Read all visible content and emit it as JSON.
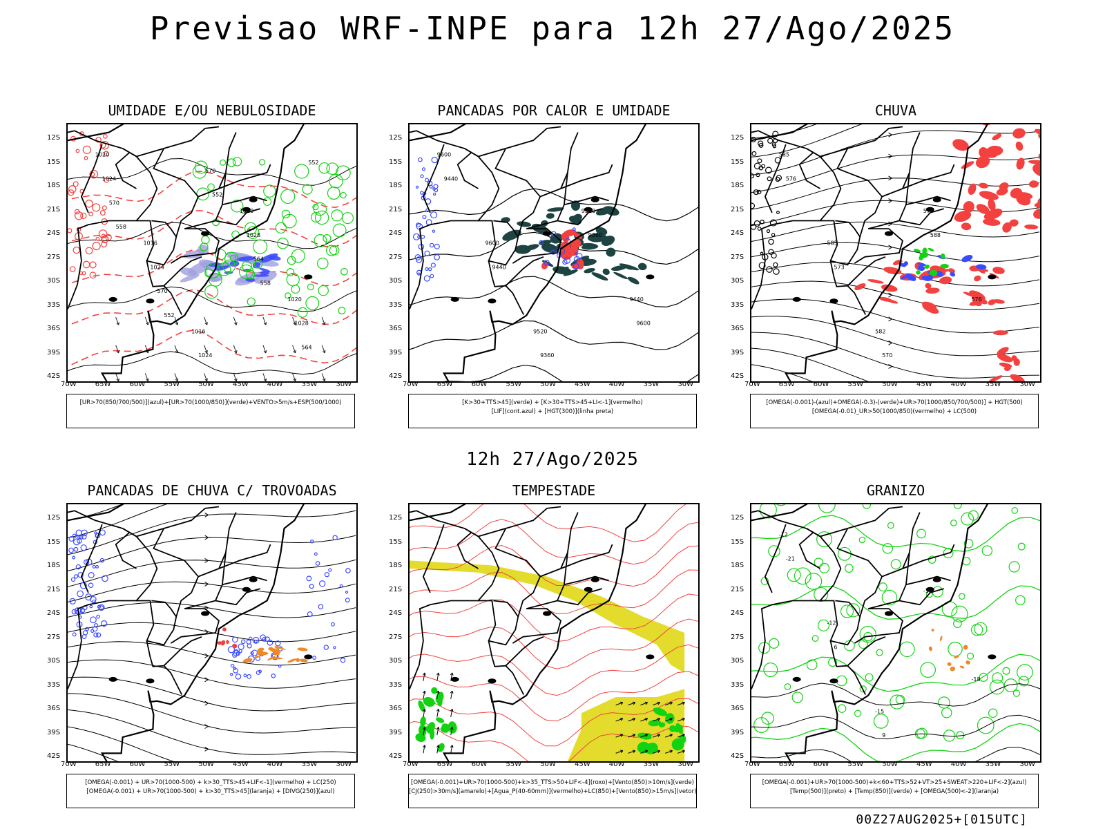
{
  "title": "Previsao WRF-INPE  para 12h 27/Ago/2025",
  "mid_date": "12h 27/Ago/2025",
  "footer": "00Z27AUG2025+[015UTC]",
  "lat_ticks": [
    "12S",
    "15S",
    "18S",
    "21S",
    "24S",
    "27S",
    "30S",
    "33S",
    "36S",
    "39S",
    "42S"
  ],
  "lon_ticks": [
    "70W",
    "65W",
    "60W",
    "55W",
    "50W",
    "45W",
    "40W",
    "35W",
    "30W"
  ],
  "panels": [
    {
      "id": "umidade",
      "title": "UMIDADE E/OU NEBULOSIDADE",
      "legend": [
        "[UR>70(850/700/500)](azul)+[UR>70(1000/850)](verde)+VENTO>5m/s+ESP(500/1000)"
      ],
      "contour_labels": [
        "1020",
        "1016",
        "1016",
        "1020",
        "1020",
        "1024",
        "1024",
        "1024",
        "1028",
        "1028",
        "570",
        "570",
        "570",
        "564",
        "564",
        "558",
        "552",
        "552",
        "558",
        "552"
      ]
    },
    {
      "id": "pancadas-calor",
      "title": "PANCADAS POR CALOR E UMIDADE",
      "legend": [
        "[K>30+TTS>45](verde) + [K>30+TTS>45+LI<-1](vermelho)",
        "[LIF](cont.azul) + [HGT(300)](linha preta)"
      ],
      "contour_labels": [
        "9600",
        "9600",
        "9520",
        "9520",
        "9440",
        "9440",
        "9440",
        "9360",
        "9360",
        "9600"
      ]
    },
    {
      "id": "chuva",
      "title": "CHUVA",
      "legend": [
        "[OMEGA(-0.001)-(azul)+OMEGA(-0.3)-(verde)+UR>70(1000/850/700/500)] + HGT(500)",
        "[OMEGA(-0.01)_UR>50(1000/850)(vermelho) + LC(500)"
      ],
      "contour_labels": [
        "585",
        "585",
        "582",
        "579",
        "576",
        "576",
        "573",
        "570",
        "588"
      ]
    },
    {
      "id": "pancadas-trovoadas",
      "title": "PANCADAS DE CHUVA C/ TROVOADAS",
      "legend": [
        "[OMEGA(-0.001) + UR>70(1000-500) + k>30_TTS>45+LIF<-1](vermelho) + LC(250)",
        "[OMEGA(-0.001) + UR>70(1000-500) + k>30_TTS>45](laranja) + [DIVG(250)](azul)"
      ],
      "contour_labels": []
    },
    {
      "id": "tempestade",
      "title": "TEMPESTADE",
      "legend": [
        "[OMEGA(-0.001)+UR>70(1000-500)+k>35_TTS>50+LIF<-4](roxo)+[Vento(850)>10m/s](verde)",
        "[CJ(250)>30m/s](amarelo)+[Agua_P(40-60mm)](vermelho)+LC(850)+[Vento(850)>15m/s](vetor)"
      ],
      "contour_labels": []
    },
    {
      "id": "granizo",
      "title": "GRANIZO",
      "legend": [
        "[OMEGA(-0.001)+UR>70(1000-500)+k<60+TTS>52+VT>25+SWEAT>220+LIF<-2](azul)",
        "[Temp(500)](preto) + [Temp(850)](verde) + [OMEGA(500)<-2](laranja)"
      ],
      "contour_labels": [
        "-12",
        "-12",
        "-15",
        "-18",
        "-18",
        "-21",
        "6",
        "9"
      ]
    }
  ],
  "colors": {
    "background": "#ffffff",
    "land_border": "#000000",
    "humid_blue": "#3a4bff",
    "humid_purple": "#9f9fe0",
    "green": "#12d312",
    "red": "#f2413f",
    "dark_teal": "#1e4343",
    "yellow": "#e3dc2c",
    "orange": "#ef8a27"
  }
}
